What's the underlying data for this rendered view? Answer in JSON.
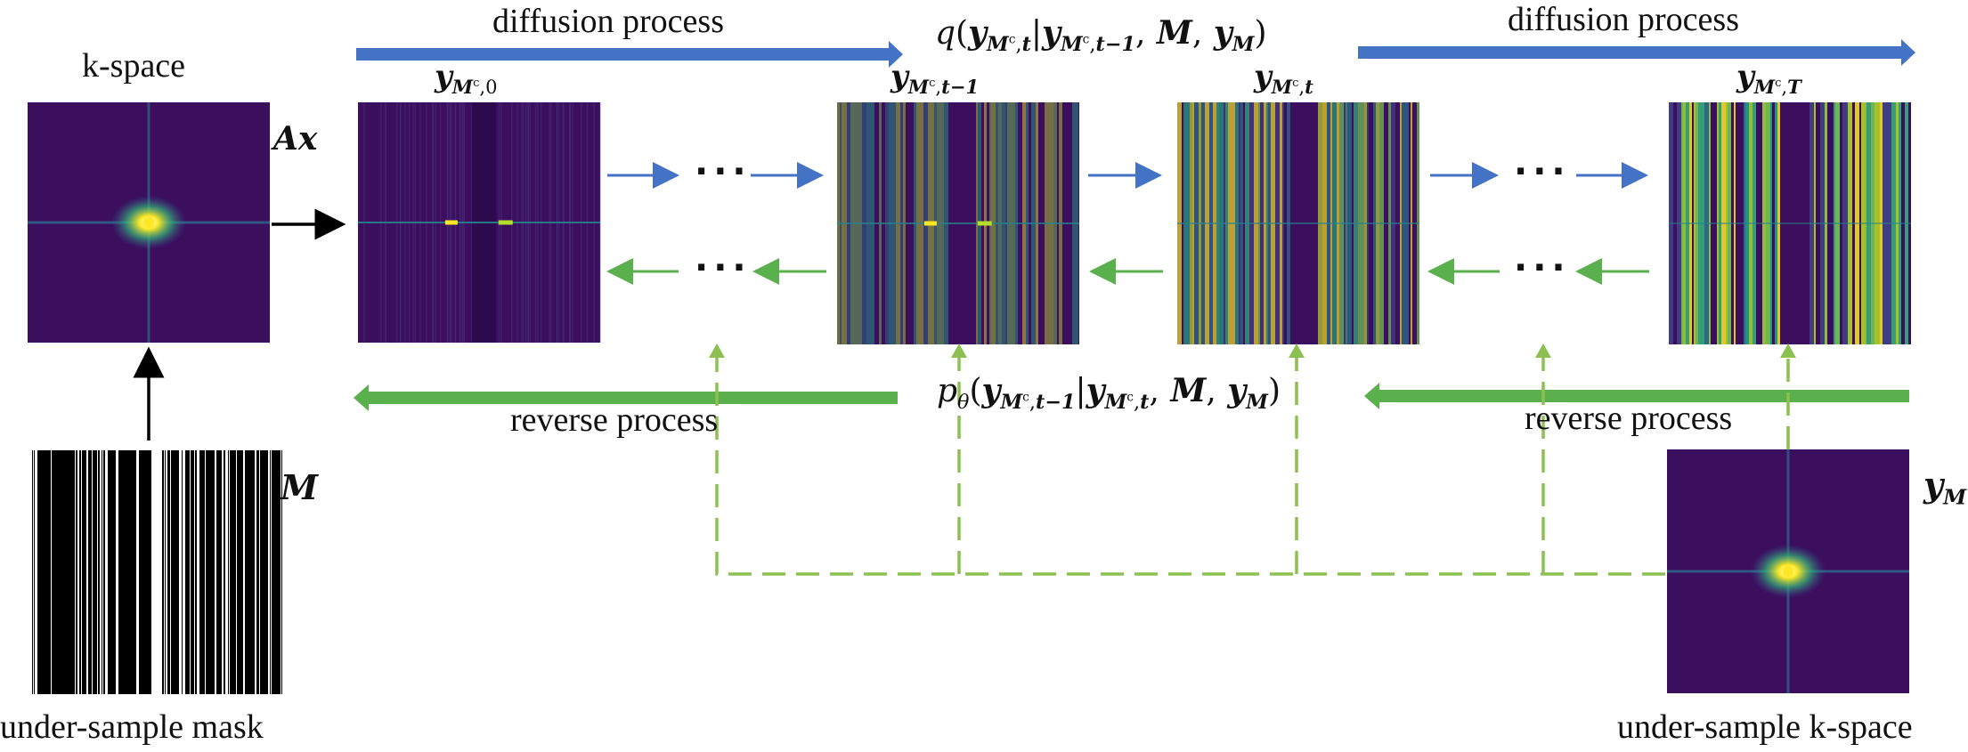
{
  "labels": {
    "kspace": "k-space",
    "undersample_mask": "under-sample mask",
    "undersample_kspace": "under-sample k-space",
    "diffusion_left": "diffusion process",
    "diffusion_right": "diffusion process",
    "reverse_left": "reverse process",
    "reverse_right": "reverse process",
    "Ax": "Ax",
    "M": "M",
    "ellipsis": "···"
  },
  "math": {
    "y": "y",
    "M": "M",
    "c": "c",
    "comma": ",",
    "sub_0": "0",
    "sub_t_minus_1": "t−1",
    "sub_t": "t",
    "sub_T": "T",
    "q": "q",
    "p": "p",
    "theta": "θ",
    "open_paren": "(",
    "close_paren": ")",
    "bar": "|"
  },
  "colors": {
    "forward_arrow": "#4472c4",
    "reverse_arrow": "#5ab04c",
    "dashed_arrow": "#8cc152",
    "black_arrow": "#000000",
    "panel_dark": "#3b0f5e",
    "panel_noise_a": "#2c7a8c",
    "panel_noise_b": "#c8e03a",
    "center_glow": "#fde725"
  },
  "panels": [
    {
      "name": "kspace-image",
      "noise": 0
    },
    {
      "name": "y-mc-0-image",
      "noise": 0
    },
    {
      "name": "y-mc-t-minus-1-image",
      "noise": 0.35
    },
    {
      "name": "y-mc-t-image",
      "noise": 0.7
    },
    {
      "name": "y-mc-T-image",
      "noise": 1.0
    },
    {
      "name": "y-m-kspace-image",
      "noise": 0
    }
  ]
}
